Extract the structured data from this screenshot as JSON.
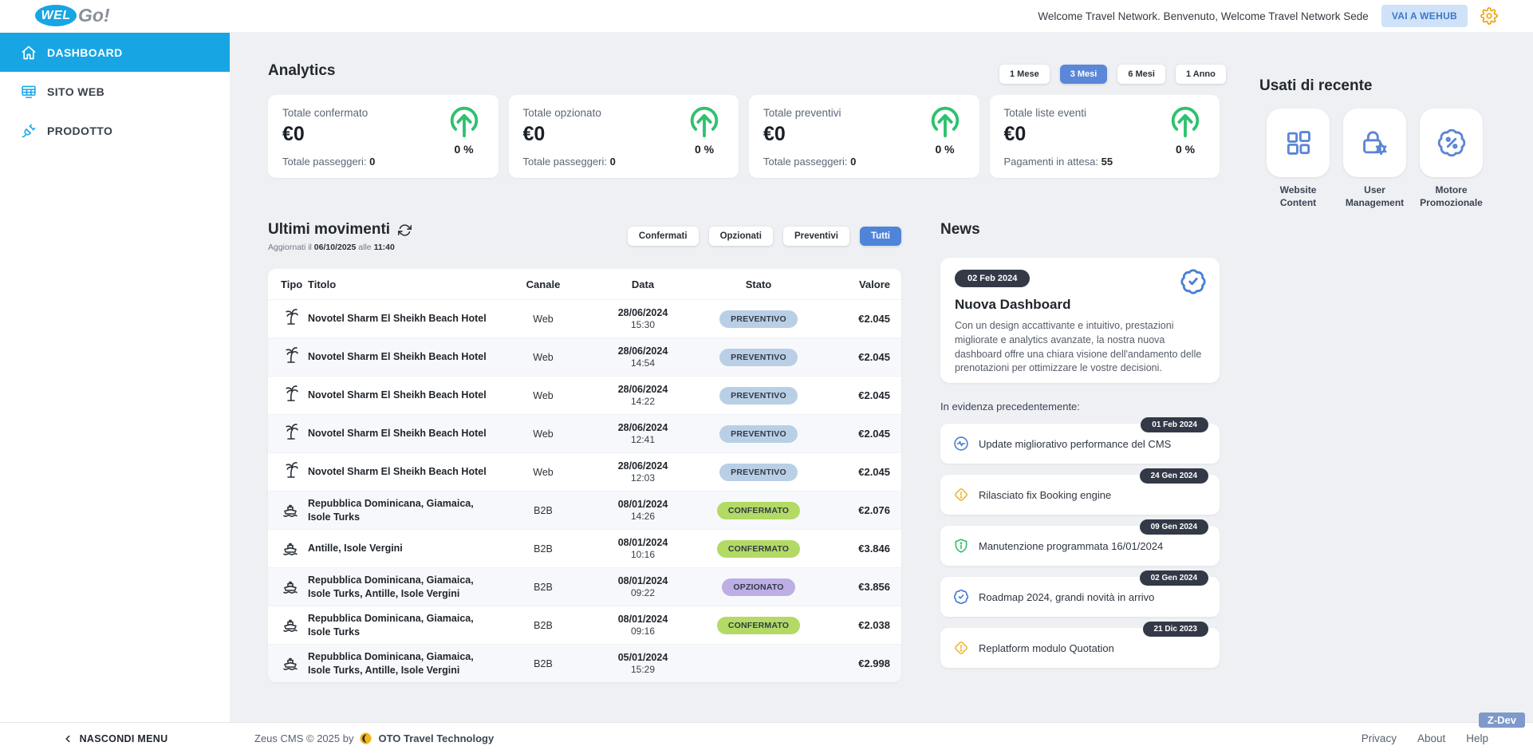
{
  "header": {
    "welcome": "Welcome Travel Network. Benvenuto, Welcome Travel Network Sede",
    "wehub": "VAI A WEHUB"
  },
  "sidebar": {
    "logo_wel": "WEL",
    "logo_go": "Go!",
    "items": [
      {
        "label": "DASHBOARD",
        "icon": "home",
        "active": true
      },
      {
        "label": "SITO WEB",
        "icon": "screen-grid",
        "active": false
      },
      {
        "label": "PRODOTTO",
        "icon": "plug",
        "active": false
      }
    ],
    "hide_menu": "NASCONDI MENU"
  },
  "analytics": {
    "title": "Analytics",
    "periods": [
      "1 Mese",
      "3 Mesi",
      "6 Mesi",
      "1 Anno"
    ],
    "active_period": "3 Mesi",
    "cards": [
      {
        "label": "Totale confermato",
        "value": "€0",
        "sub_label": "Totale passeggeri:",
        "sub_value": "0",
        "change": "0 %"
      },
      {
        "label": "Totale opzionato",
        "value": "€0",
        "sub_label": "Totale passeggeri:",
        "sub_value": "0",
        "change": "0 %"
      },
      {
        "label": "Totale preventivi",
        "value": "€0",
        "sub_label": "Totale passeggeri:",
        "sub_value": "0",
        "change": "0 %"
      },
      {
        "label": "Totale liste eventi",
        "value": "€0",
        "sub_label": "Pagamenti in attesa:",
        "sub_value": "55",
        "change": "0 %"
      }
    ]
  },
  "recent": {
    "title": "Usati di recente",
    "items": [
      {
        "label": "Website Content",
        "icon": "grid-squares"
      },
      {
        "label": "User Management",
        "icon": "lock-gear"
      },
      {
        "label": "Motore Promozionale",
        "icon": "badge-percent"
      }
    ]
  },
  "movements": {
    "title": "Ultimi movimenti",
    "updated": {
      "prefix": "Aggiornati il",
      "date": "06/10/2025",
      "infix": "alle",
      "time": "11:40"
    },
    "filters": [
      "Confermati",
      "Opzionati",
      "Preventivi",
      "Tutti"
    ],
    "active_filter": "Tutti",
    "columns": [
      "Tipo",
      "Titolo",
      "Canale",
      "Data",
      "Stato",
      "Valore"
    ],
    "rows": [
      {
        "type": "palm-tree",
        "title": "Novotel Sharm El Sheikh Beach Hotel",
        "canale": "Web",
        "date": "28/06/2024",
        "time": "15:30",
        "status": "PREVENTIVO",
        "value": "€2.045"
      },
      {
        "type": "palm-tree",
        "title": "Novotel Sharm El Sheikh Beach Hotel",
        "canale": "Web",
        "date": "28/06/2024",
        "time": "14:54",
        "status": "PREVENTIVO",
        "value": "€2.045"
      },
      {
        "type": "palm-tree",
        "title": "Novotel Sharm El Sheikh Beach Hotel",
        "canale": "Web",
        "date": "28/06/2024",
        "time": "14:22",
        "status": "PREVENTIVO",
        "value": "€2.045"
      },
      {
        "type": "palm-tree",
        "title": "Novotel Sharm El Sheikh Beach Hotel",
        "canale": "Web",
        "date": "28/06/2024",
        "time": "12:41",
        "status": "PREVENTIVO",
        "value": "€2.045"
      },
      {
        "type": "palm-tree",
        "title": "Novotel Sharm El Sheikh Beach Hotel",
        "canale": "Web",
        "date": "28/06/2024",
        "time": "12:03",
        "status": "PREVENTIVO",
        "value": "€2.045"
      },
      {
        "type": "ship",
        "title": "Repubblica Dominicana, Giamaica, Isole Turks",
        "canale": "B2B",
        "date": "08/01/2024",
        "time": "14:26",
        "status": "CONFERMATO",
        "value": "€2.076"
      },
      {
        "type": "ship",
        "title": "Antille, Isole Vergini",
        "canale": "B2B",
        "date": "08/01/2024",
        "time": "10:16",
        "status": "CONFERMATO",
        "value": "€3.846"
      },
      {
        "type": "ship",
        "title": "Repubblica Dominicana, Giamaica, Isole Turks, Antille, Isole Vergini",
        "canale": "B2B",
        "date": "08/01/2024",
        "time": "09:22",
        "status": "OPZIONATO",
        "value": "€3.856"
      },
      {
        "type": "ship",
        "title": "Repubblica Dominicana, Giamaica, Isole Turks",
        "canale": "B2B",
        "date": "08/01/2024",
        "time": "09:16",
        "status": "CONFERMATO",
        "value": "€2.038"
      },
      {
        "type": "ship",
        "title": "Repubblica Dominicana, Giamaica, Isole Turks, Antille, Isole Vergini",
        "canale": "B2B",
        "date": "05/01/2024",
        "time": "15:29",
        "status": null,
        "value": "€2.998"
      }
    ]
  },
  "news": {
    "title": "News",
    "featured": {
      "date": "02 Feb 2024",
      "title": "Nuova Dashboard",
      "body": "Con un design accattivante e intuitivo, prestazioni migliorate e analytics avanzate, la nostra nuova dashboard offre una chiara visione dell'andamento delle prenotazioni per ottimizzare le vostre decisioni.",
      "icon": "badge-check"
    },
    "previous_label": "In evidenza precedentemente:",
    "items": [
      {
        "date": "01 Feb 2024",
        "text": "Update migliorativo performance del CMS",
        "icon": "activity",
        "icon_color": "#4a7fd4"
      },
      {
        "date": "24 Gen 2024",
        "text": "Rilasciato fix Booking engine",
        "icon": "alert-diamond",
        "icon_color": "#f0b42c"
      },
      {
        "date": "09 Gen 2024",
        "text": "Manutenzione programmata 16/01/2024",
        "icon": "shield-info",
        "icon_color": "#2ebd6b"
      },
      {
        "date": "02 Gen 2024",
        "text": "Roadmap 2024, grandi novità in arrivo",
        "icon": "badge-check",
        "icon_color": "#4a7fd4"
      },
      {
        "date": "21 Dic 2023",
        "text": "Replatform modulo Quotation",
        "icon": "alert-diamond",
        "icon_color": "#f0b42c"
      }
    ]
  },
  "footer": {
    "copyright": "Zeus CMS © 2025 by",
    "company": "OTO Travel Technology",
    "links": [
      "Privacy",
      "About",
      "Help"
    ],
    "badge": "Z-Dev"
  },
  "colors": {
    "sidebar_active": "#17a5e3",
    "period_active": "#5b87d8",
    "filter_active": "#4f84d8",
    "trend_green": "#2ec16e",
    "gear_orange": "#f0a81c",
    "status": {
      "PREVENTIVO": "#b9cfe6",
      "CONFERMATO": "#b2da65",
      "OPZIONATO": "#bdaee5"
    }
  }
}
